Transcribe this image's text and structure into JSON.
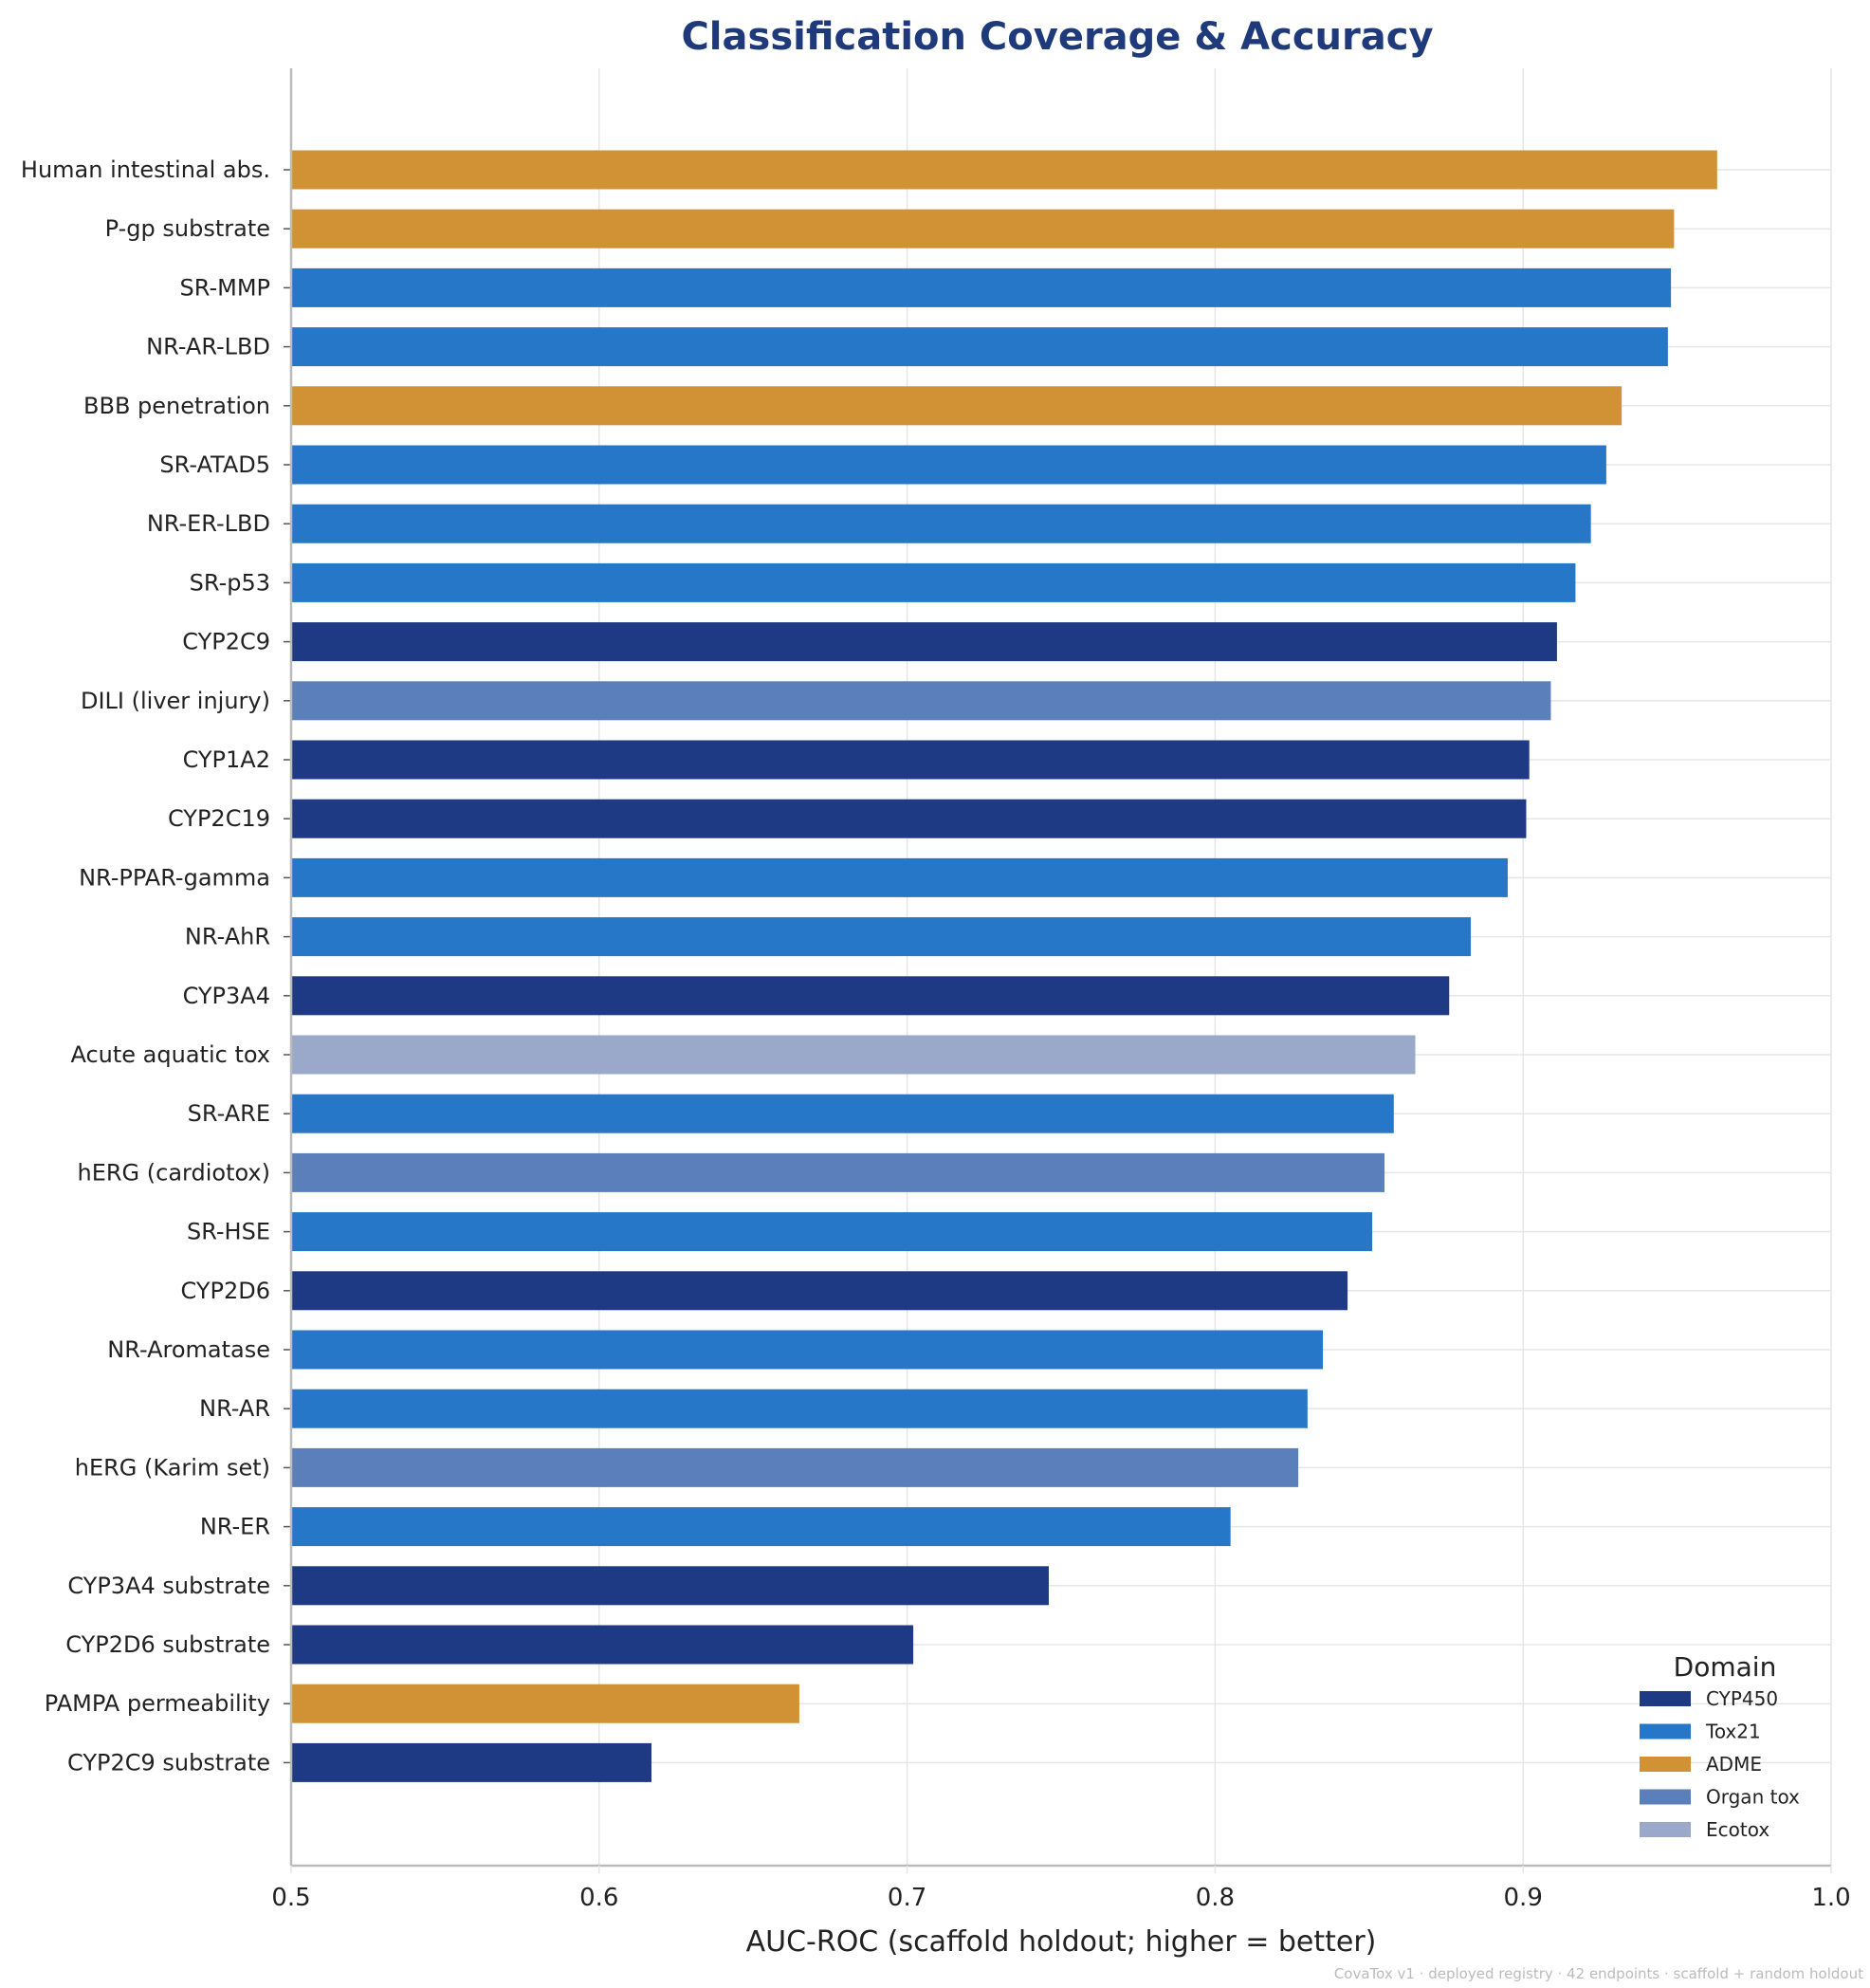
{
  "chart_data": {
    "type": "bar",
    "orientation": "horizontal",
    "title": "Classification Coverage & Accuracy",
    "xlabel": "AUC-ROC  (scaffold holdout; higher = better)",
    "ylabel": "",
    "xlim": [
      0.5,
      1.0
    ],
    "xticks": [
      "0.5",
      "0.6",
      "0.7",
      "0.8",
      "0.9",
      "1.0"
    ],
    "grid": true,
    "legend": {
      "title": "Domain",
      "placement": "bottom-right",
      "entries": [
        {
          "label": "CYP450",
          "color": "#1f3a85"
        },
        {
          "label": "Tox21",
          "color": "#2777c8"
        },
        {
          "label": "ADME",
          "color": "#d09235"
        },
        {
          "label": "Organ tox",
          "color": "#5b7fba"
        },
        {
          "label": "Ecotox",
          "color": "#9aa8c9"
        }
      ]
    },
    "bars": [
      {
        "category": "Human intestinal abs.",
        "value": 0.963,
        "domain": "ADME"
      },
      {
        "category": "P-gp substrate",
        "value": 0.949,
        "domain": "ADME"
      },
      {
        "category": "SR-MMP",
        "value": 0.948,
        "domain": "Tox21"
      },
      {
        "category": "NR-AR-LBD",
        "value": 0.947,
        "domain": "Tox21"
      },
      {
        "category": "BBB penetration",
        "value": 0.932,
        "domain": "ADME"
      },
      {
        "category": "SR-ATAD5",
        "value": 0.927,
        "domain": "Tox21"
      },
      {
        "category": "NR-ER-LBD",
        "value": 0.922,
        "domain": "Tox21"
      },
      {
        "category": "SR-p53",
        "value": 0.917,
        "domain": "Tox21"
      },
      {
        "category": "CYP2C9",
        "value": 0.911,
        "domain": "CYP450"
      },
      {
        "category": "DILI (liver injury)",
        "value": 0.909,
        "domain": "Organ tox"
      },
      {
        "category": "CYP1A2",
        "value": 0.902,
        "domain": "CYP450"
      },
      {
        "category": "CYP2C19",
        "value": 0.901,
        "domain": "CYP450"
      },
      {
        "category": "NR-PPAR-gamma",
        "value": 0.895,
        "domain": "Tox21"
      },
      {
        "category": "NR-AhR",
        "value": 0.883,
        "domain": "Tox21"
      },
      {
        "category": "CYP3A4",
        "value": 0.876,
        "domain": "CYP450"
      },
      {
        "category": "Acute aquatic tox",
        "value": 0.865,
        "domain": "Ecotox"
      },
      {
        "category": "SR-ARE",
        "value": 0.858,
        "domain": "Tox21"
      },
      {
        "category": "hERG (cardiotox)",
        "value": 0.855,
        "domain": "Organ tox"
      },
      {
        "category": "SR-HSE",
        "value": 0.851,
        "domain": "Tox21"
      },
      {
        "category": "CYP2D6",
        "value": 0.843,
        "domain": "CYP450"
      },
      {
        "category": "NR-Aromatase",
        "value": 0.835,
        "domain": "Tox21"
      },
      {
        "category": "NR-AR",
        "value": 0.83,
        "domain": "Tox21"
      },
      {
        "category": "hERG (Karim set)",
        "value": 0.827,
        "domain": "Organ tox"
      },
      {
        "category": "NR-ER",
        "value": 0.805,
        "domain": "Tox21"
      },
      {
        "category": "CYP3A4 substrate",
        "value": 0.746,
        "domain": "CYP450"
      },
      {
        "category": "CYP2D6 substrate",
        "value": 0.702,
        "domain": "CYP450"
      },
      {
        "category": "PAMPA permeability",
        "value": 0.665,
        "domain": "ADME"
      },
      {
        "category": "CYP2C9 substrate",
        "value": 0.617,
        "domain": "CYP450"
      }
    ],
    "footer": "CovaTox v1 · deployed registry · 42 endpoints · scaffold + random holdout"
  }
}
